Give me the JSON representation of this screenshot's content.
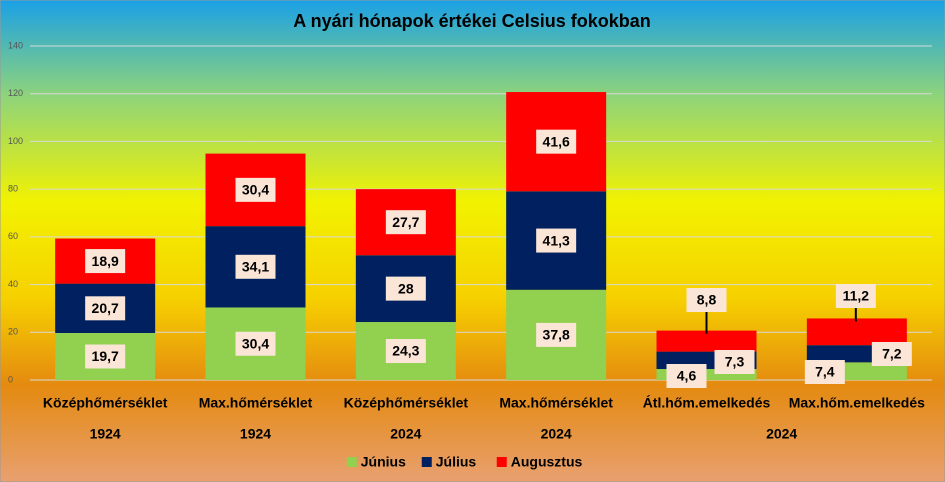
{
  "chart_data": {
    "type": "stacked_bar",
    "title": "A nyári hónapok értékei Celsius fokokban",
    "categories": [
      "Középhőmérséklet",
      "Max.hőmérséklet",
      "Középhőmérséklet",
      "Max.hőmérséklet",
      "Átl.hőm.emelkedés",
      "Max.hőm.emelkedés"
    ],
    "groups": [
      {
        "name": "1924",
        "size": 1
      },
      {
        "name": "1924",
        "size": 1
      },
      {
        "name": "2024",
        "size": 1
      },
      {
        "name": "2024",
        "size": 1
      },
      {
        "name": "2024",
        "size": 2
      }
    ],
    "series": [
      {
        "name": "Június",
        "color": "#92d050",
        "values": [
          19.7,
          30.4,
          24.3,
          37.8,
          4.6,
          7.4
        ],
        "value_labels": [
          "19,7",
          "30,4",
          "24,3",
          "37,8",
          "4,6",
          "7,4"
        ]
      },
      {
        "name": "Július",
        "color": "#002060",
        "values": [
          20.7,
          34.1,
          28,
          41.3,
          7.3,
          7.2
        ],
        "value_labels": [
          "20,7",
          "34,1",
          "28",
          "41,3",
          "7,3",
          "7,2"
        ]
      },
      {
        "name": "Augusztus",
        "color": "#ff0000",
        "values": [
          18.9,
          30.4,
          27.7,
          41.6,
          8.8,
          11.2
        ],
        "value_labels": [
          "18,9",
          "30,4",
          "27,7",
          "41,6",
          "8,8",
          "11,2"
        ]
      }
    ],
    "ylim": [
      0,
      140
    ],
    "yticks": [
      0,
      20,
      40,
      60,
      80,
      100,
      120,
      140
    ],
    "grid": true,
    "legend": "bottom"
  }
}
